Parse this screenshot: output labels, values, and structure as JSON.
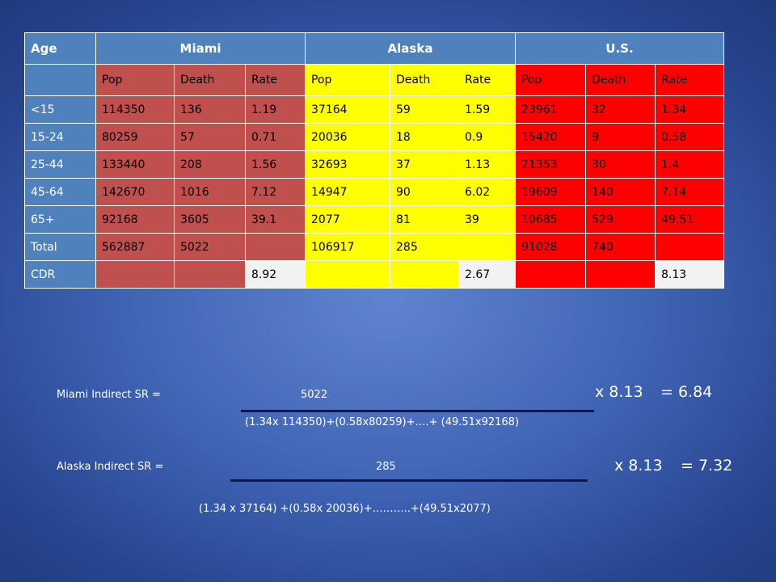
{
  "table": {
    "headers": {
      "age": "Age",
      "groups": [
        "Miami",
        "Alaska",
        "U.S."
      ]
    },
    "subheaders": [
      "Pop",
      "Death",
      "Rate",
      "Pop",
      "Death",
      "Rate",
      "Pop",
      "Death",
      "Rate"
    ],
    "rows": [
      {
        "age": "<15",
        "cells": [
          "114350",
          "136",
          "1.19",
          "37164",
          "59",
          "1.59",
          "23961",
          "32",
          "1.34"
        ]
      },
      {
        "age": "15-24",
        "cells": [
          "80259",
          "57",
          "0.71",
          "20036",
          "18",
          "0.9",
          "15420",
          "9",
          "0.58"
        ]
      },
      {
        "age": "25-44",
        "cells": [
          "133440",
          "208",
          "1.56",
          "32693",
          "37",
          "1.13",
          "21353",
          "30",
          "1.4"
        ]
      },
      {
        "age": "45-64",
        "cells": [
          "142670",
          "1016",
          "7.12",
          "14947",
          "90",
          "6.02",
          "19609",
          "140",
          "7.14"
        ]
      },
      {
        "age": "65+",
        "cells": [
          "92168",
          "3605",
          "39.1",
          "2077",
          "81",
          "39",
          "10685",
          "529",
          "49.51"
        ]
      },
      {
        "age": "Total",
        "cells": [
          "562887",
          "5022",
          "",
          "106917",
          "285",
          "",
          "91028",
          "740",
          ""
        ]
      },
      {
        "age": "CDR",
        "cells": [
          "",
          "",
          "8.92",
          "",
          "",
          "2.67",
          "",
          "",
          "8.13"
        ]
      }
    ]
  },
  "formulas": {
    "miami": {
      "label": "Miami Indirect SR =",
      "numerator": "5022",
      "denominator": "(1.34x 114350)+(0.58x80259)+….+ (49.51x92168)",
      "multiplier": "x 8.13",
      "result": "= 6.84"
    },
    "alaska": {
      "label": "Alaska Indirect SR =",
      "numerator": "285",
      "denominator": "(1.34 x 37164) +(0.58x 20036)+………..+(49.51x2077)",
      "multiplier": "x 8.13",
      "result": "= 7.32"
    }
  },
  "colors": {
    "header_blue": "#4f81bd",
    "miami": "#c0504d",
    "alaska": "#ffff00",
    "us": "#ff0000",
    "cdr_white": "#f2f2f2"
  }
}
